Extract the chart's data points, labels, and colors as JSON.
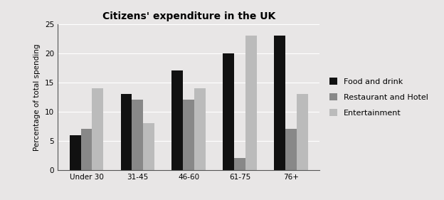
{
  "title": "Citizens' expenditure in the UK",
  "ylabel": "Percentage of total spending",
  "categories": [
    "Under 30",
    "31-45",
    "46-60",
    "61-75",
    "76+"
  ],
  "series": [
    {
      "name": "Food and drink",
      "values": [
        6,
        13,
        17,
        20,
        23
      ],
      "color": "#111111"
    },
    {
      "name": "Restaurant and Hotel",
      "values": [
        7,
        12,
        12,
        2,
        7
      ],
      "color": "#888888"
    },
    {
      "name": "Entertainment",
      "values": [
        14,
        8,
        14,
        23,
        13
      ],
      "color": "#bbbbbb"
    }
  ],
  "ylim": [
    0,
    25
  ],
  "yticks": [
    0,
    5,
    10,
    15,
    20,
    25
  ],
  "background_color": "#e8e6e6",
  "plot_bg_color": "#e8e6e6",
  "title_fontsize": 10,
  "axis_fontsize": 7.5,
  "legend_fontsize": 8,
  "bar_width": 0.22,
  "grid_color": "#ffffff"
}
